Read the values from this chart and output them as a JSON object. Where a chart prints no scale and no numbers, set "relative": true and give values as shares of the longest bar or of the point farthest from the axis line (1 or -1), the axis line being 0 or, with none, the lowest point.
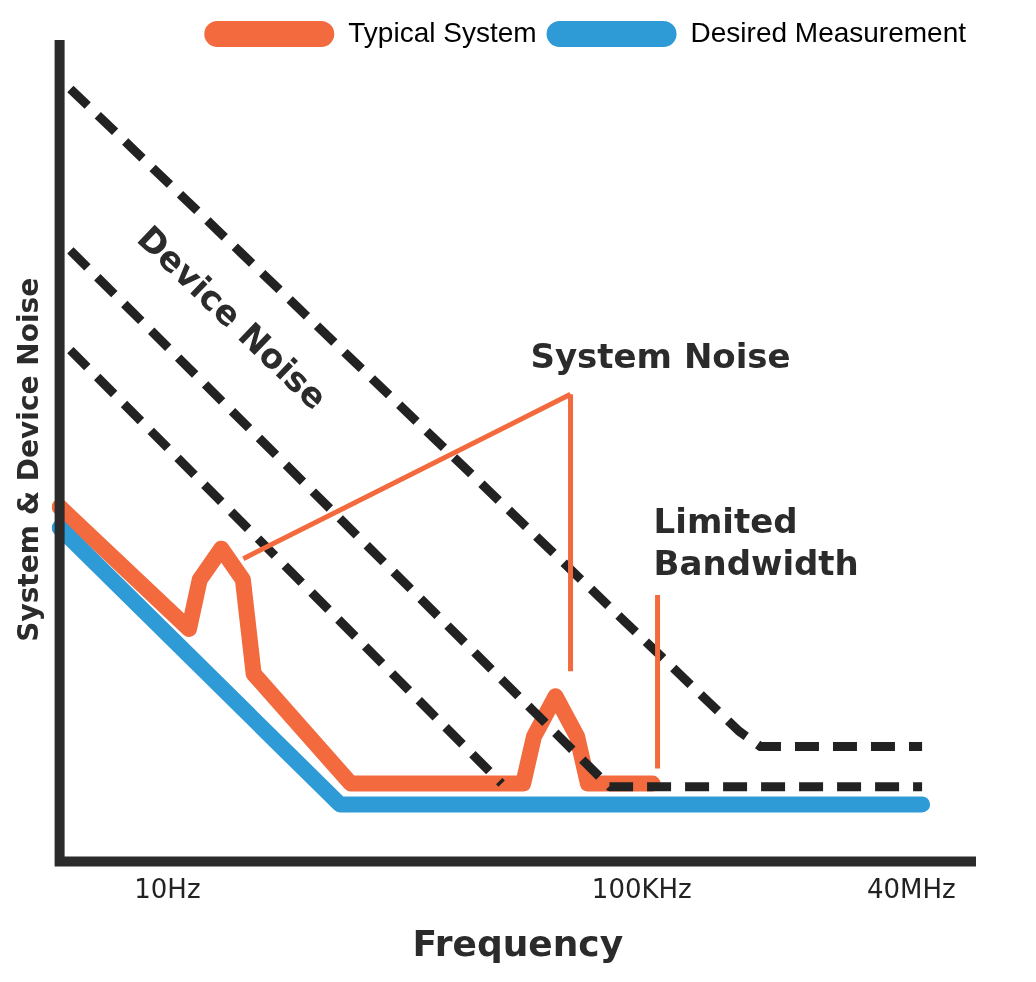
{
  "chart_data": {
    "type": "line",
    "relative": true,
    "xlabel": "Frequency",
    "ylabel": "System & Device Noise",
    "categories": [
      null,
      null,
      null,
      null,
      null,
      null,
      null,
      null,
      null,
      null,
      "10Hz",
      null,
      null,
      null,
      null,
      null,
      null,
      null,
      null,
      null,
      null,
      null,
      null,
      null,
      null,
      null,
      null,
      null,
      null,
      null,
      null,
      null,
      null,
      null,
      null,
      null,
      null,
      null,
      null,
      null,
      null,
      null,
      null,
      null,
      null,
      null,
      null,
      null,
      null,
      null,
      null,
      null,
      null,
      null,
      "100KHz",
      null,
      null,
      null,
      null,
      null,
      null,
      null,
      null,
      null,
      null,
      null,
      null,
      null,
      null,
      null,
      null,
      null,
      null,
      null,
      null,
      null,
      null,
      null,
      null,
      "40MHz",
      null,
      null,
      null,
      null,
      null,
      null
    ],
    "legend": "top right",
    "grid": false,
    "marker": "none",
    "series": [
      {
        "name": "Typical System",
        "color": "#f26a3e",
        "values": [
          0.459,
          null,
          null,
          null,
          null,
          null,
          null,
          null,
          null,
          null,
          null,
          null,
          0.301,
          0.365,
          null,
          0.405,
          null,
          0.365,
          0.243,
          null,
          null,
          null,
          null,
          null,
          null,
          null,
          null,
          0.101,
          null,
          null,
          null,
          null,
          null,
          null,
          null,
          null,
          null,
          null,
          null,
          null,
          null,
          null,
          null,
          0.101,
          0.162,
          null,
          0.214,
          null,
          0.162,
          0.101,
          null,
          null,
          null,
          null,
          null,
          0.101,
          null,
          null,
          null,
          null,
          null,
          null,
          null,
          null,
          null,
          null,
          null,
          null,
          null,
          null,
          null,
          null,
          null,
          null,
          null,
          null,
          null,
          null,
          null,
          null,
          null,
          null,
          null,
          null,
          null,
          null
        ]
      },
      {
        "name": "Desired Measurement",
        "color": "#2e9bd6",
        "values": [
          0.432,
          null,
          null,
          null,
          null,
          null,
          null,
          null,
          null,
          null,
          null,
          null,
          null,
          null,
          null,
          null,
          null,
          null,
          null,
          null,
          null,
          null,
          null,
          null,
          null,
          null,
          0.074,
          null,
          null,
          null,
          null,
          null,
          null,
          null,
          null,
          null,
          null,
          null,
          null,
          null,
          null,
          null,
          null,
          null,
          null,
          null,
          null,
          null,
          null,
          null,
          null,
          null,
          null,
          null,
          null,
          null,
          null,
          null,
          null,
          null,
          null,
          null,
          null,
          null,
          null,
          null,
          null,
          null,
          null,
          null,
          null,
          null,
          null,
          null,
          null,
          null,
          null,
          null,
          null,
          null,
          0.074,
          null,
          null,
          null,
          null,
          null
        ]
      },
      {
        "color": "#222222",
        "line_style": "dashed",
        "values": [
          null,
          1,
          null,
          null,
          null,
          null,
          null,
          null,
          null,
          null,
          null,
          null,
          null,
          null,
          null,
          null,
          null,
          null,
          null,
          null,
          null,
          null,
          null,
          null,
          null,
          null,
          null,
          null,
          null,
          null,
          null,
          null,
          null,
          null,
          null,
          null,
          null,
          null,
          null,
          null,
          null,
          null,
          null,
          null,
          null,
          null,
          null,
          null,
          null,
          null,
          null,
          null,
          null,
          null,
          null,
          null,
          null,
          null,
          null,
          null,
          null,
          null,
          null,
          0.169,
          null,
          0.149,
          null,
          null,
          null,
          null,
          null,
          null,
          null,
          null,
          null,
          null,
          null,
          null,
          null,
          null,
          0.149,
          null,
          null,
          null,
          null,
          null
        ]
      },
      {
        "color": "#222222",
        "line_style": "dashed",
        "values": [
          null,
          0.791,
          null,
          null,
          null,
          null,
          null,
          null,
          null,
          null,
          null,
          null,
          null,
          null,
          null,
          null,
          null,
          null,
          null,
          null,
          null,
          null,
          null,
          null,
          null,
          null,
          null,
          null,
          null,
          null,
          null,
          null,
          null,
          null,
          null,
          null,
          null,
          null,
          null,
          null,
          null,
          null,
          null,
          null,
          null,
          null,
          null,
          null,
          null,
          null,
          null,
          0.097,
          null,
          null,
          null,
          null,
          null,
          null,
          null,
          null,
          null,
          null,
          null,
          null,
          null,
          null,
          null,
          null,
          null,
          null,
          null,
          null,
          null,
          null,
          null,
          null,
          null,
          null,
          null,
          null,
          0.097,
          null,
          null,
          null,
          null,
          null
        ]
      },
      {
        "color": "#222222",
        "line_style": "dashed",
        "values": [
          null,
          0.662,
          null,
          null,
          null,
          null,
          null,
          null,
          null,
          null,
          null,
          null,
          null,
          null,
          null,
          null,
          null,
          null,
          null,
          null,
          null,
          null,
          null,
          null,
          null,
          null,
          null,
          null,
          null,
          null,
          null,
          null,
          null,
          null,
          null,
          null,
          null,
          null,
          null,
          null,
          null,
          0.101,
          null,
          null,
          null,
          null,
          null,
          null,
          null,
          null,
          null,
          null,
          null,
          null,
          null,
          null,
          null,
          null,
          null,
          null,
          null,
          null,
          null,
          null,
          null,
          null,
          null,
          null,
          null,
          null,
          null,
          null,
          null,
          null,
          null,
          null,
          null,
          null,
          null,
          null,
          null,
          null,
          null,
          null,
          null,
          null
        ]
      }
    ],
    "annotations": [
      "Device Noise",
      "System Noise",
      "Limited Bandwidth"
    ]
  }
}
